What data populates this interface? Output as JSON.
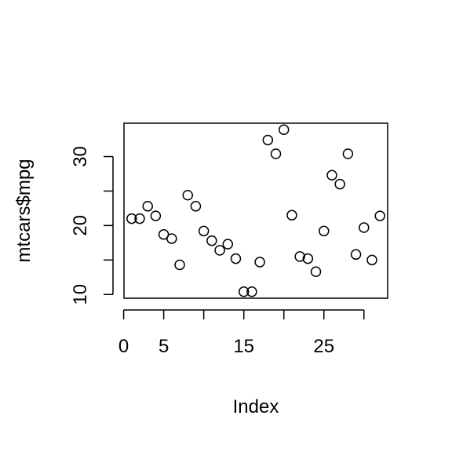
{
  "chart_data": {
    "type": "scatter",
    "title": "",
    "xlabel": "Index",
    "ylabel": "mtcars$mpg",
    "xlim": [
      0.04,
      32.96
    ],
    "ylim": [
      9.46,
      34.84
    ],
    "x_ticks": [
      0,
      5,
      15,
      25
    ],
    "x_tick_marks": [
      0,
      5,
      10,
      15,
      20,
      25,
      30
    ],
    "y_ticks": [
      10,
      20,
      30
    ],
    "y_tick_marks": [
      10,
      15,
      20,
      25,
      30
    ],
    "grid": false,
    "legend": "none",
    "marker": "open-circle",
    "colors": {
      "points": "#000000",
      "box": "#000000",
      "background": "#ffffff"
    },
    "x": [
      1,
      2,
      3,
      4,
      5,
      6,
      7,
      8,
      9,
      10,
      11,
      12,
      13,
      14,
      15,
      16,
      17,
      18,
      19,
      20,
      21,
      22,
      23,
      24,
      25,
      26,
      27,
      28,
      29,
      30,
      31,
      32
    ],
    "y": [
      21.0,
      21.0,
      22.8,
      21.4,
      18.7,
      18.1,
      14.3,
      24.4,
      22.8,
      19.2,
      17.8,
      16.4,
      17.3,
      15.2,
      10.4,
      10.4,
      14.7,
      32.4,
      30.4,
      33.9,
      21.5,
      15.5,
      15.2,
      13.3,
      19.2,
      27.3,
      26.0,
      30.4,
      15.8,
      19.7,
      15.0,
      21.4
    ]
  }
}
